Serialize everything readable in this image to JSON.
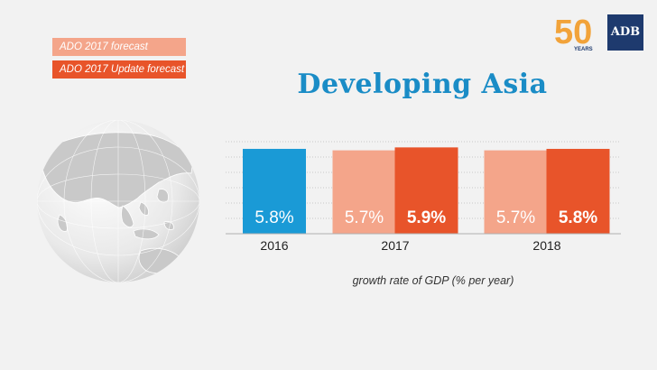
{
  "legend": {
    "items": [
      {
        "label": "ADO 2017 forecast",
        "color": "#f4a58a"
      },
      {
        "label": "ADO 2017 Update forecast",
        "color": "#e8542a"
      }
    ]
  },
  "logo": {
    "fifty_digits": "50",
    "fifty_sub": "YEARS",
    "adb": "ADB"
  },
  "chart_data": {
    "type": "bar",
    "title": "Developing Asia",
    "xlabel": "growth rate of GDP (% per year)",
    "ylabel": "",
    "categories": [
      "2016",
      "2017",
      "2018"
    ],
    "value_suffix": "%",
    "series": [
      {
        "name": "ADO 2017 forecast",
        "color": "#f4a58a",
        "values": [
          null,
          5.7,
          5.7
        ]
      },
      {
        "name": "ADO 2017 Update forecast",
        "color": "#e8542a",
        "values": [
          null,
          5.9,
          5.8
        ]
      }
    ],
    "actual": {
      "color": "#1a9ad6",
      "values": [
        5.8,
        null,
        null
      ]
    },
    "ylim": [
      0,
      6.6
    ],
    "grid": true,
    "legend_position": "top-left"
  }
}
